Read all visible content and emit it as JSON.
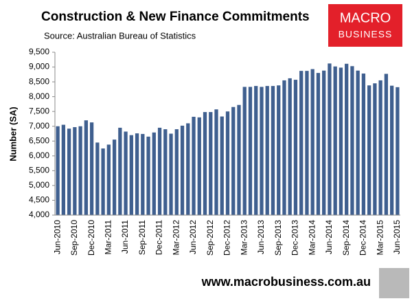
{
  "chart_data": {
    "type": "bar",
    "title": "Construction & New Finance Commitments",
    "subtitle": "Source: Australian Bureau of Statistics",
    "y_label": "Number (SA)",
    "categories": [
      "Jun-2010",
      null,
      null,
      "Sep-2010",
      null,
      null,
      "Dec-2010",
      null,
      null,
      "Mar-2011",
      null,
      null,
      "Jun-2011",
      null,
      null,
      "Sep-2011",
      null,
      null,
      "Dec-2011",
      null,
      null,
      "Mar-2012",
      null,
      null,
      "Jun-2012",
      null,
      null,
      "Sep-2012",
      null,
      null,
      "Dec-2012",
      null,
      null,
      "Mar-2013",
      null,
      null,
      "Jun-2013",
      null,
      null,
      "Sep-2013",
      null,
      null,
      "Dec-2013",
      null,
      null,
      "Mar-2014",
      null,
      null,
      "Jun-2014",
      null,
      null,
      "Sep-2014",
      null,
      null,
      "Dec-2014",
      null,
      null,
      "Mar-2015",
      null,
      null,
      "Jun-2015"
    ],
    "values": [
      7000,
      7050,
      6920,
      6970,
      7000,
      7200,
      7130,
      6450,
      6250,
      6380,
      6550,
      6950,
      6820,
      6700,
      6760,
      6740,
      6650,
      6790,
      6950,
      6900,
      6750,
      6900,
      7020,
      7100,
      7320,
      7300,
      7480,
      7480,
      7570,
      7330,
      7500,
      7650,
      7720,
      8330,
      8330,
      8360,
      8330,
      8360,
      8360,
      8380,
      8550,
      8620,
      8570,
      8870,
      8870,
      8930,
      8800,
      8880,
      9120,
      9020,
      8980,
      9110,
      9030,
      8880,
      8780,
      8380,
      8450,
      8550,
      8770,
      8370,
      8320
    ],
    "color": "#3f5f8f",
    "ylim": [
      4000,
      9500
    ],
    "yticks": [
      {
        "value": 4000,
        "label": "4,000"
      },
      {
        "value": 4500,
        "label": "4,500"
      },
      {
        "value": 5000,
        "label": "5,000"
      },
      {
        "value": 5500,
        "label": "5,500"
      },
      {
        "value": 6000,
        "label": "6,000"
      },
      {
        "value": 6500,
        "label": "6,500"
      },
      {
        "value": 7000,
        "label": "7,000"
      },
      {
        "value": 7500,
        "label": "7,500"
      },
      {
        "value": 8000,
        "label": "8,000"
      },
      {
        "value": 8500,
        "label": "8,500"
      },
      {
        "value": 9000,
        "label": "9,000"
      },
      {
        "value": 9500,
        "label": "9,500"
      }
    ],
    "grid": false
  },
  "logo": [
    "MACRO",
    "BUSINESS"
  ],
  "footer": "www.macrobusiness.com.au"
}
